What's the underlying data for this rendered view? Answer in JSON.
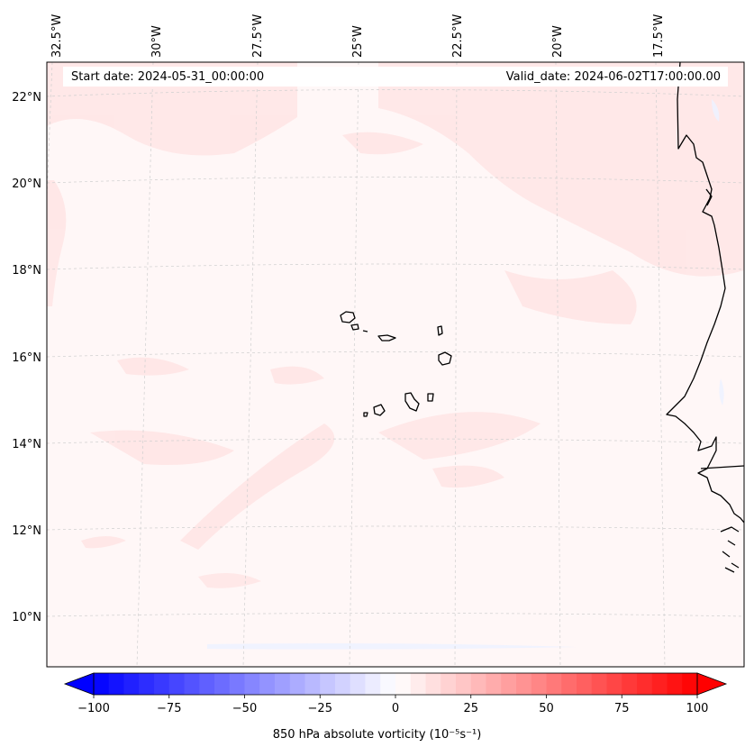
{
  "header": {
    "start_date": "Start date: 2024-05-31_00:00:00",
    "valid_date": "Valid_date: 2024-06-02T17:00:00.00"
  },
  "map": {
    "lon_ticks": [
      "32.5°W",
      "30°W",
      "27.5°W",
      "25°W",
      "22.5°W",
      "20°W",
      "17.5°W"
    ],
    "lat_ticks": [
      "22°N",
      "20°N",
      "18°N",
      "16°N",
      "14°N",
      "12°N",
      "10°N"
    ],
    "colors": {
      "coastline": "#000000",
      "gridline": "#cccccc",
      "field_base": "#fff5f5",
      "field_pos": "#ffe3e3"
    }
  },
  "colorbar": {
    "label_text": "850 hPa absolute vorticity",
    "label_unit": "(10⁻⁵s⁻¹)",
    "ticks": [
      "−100",
      "−75",
      "−50",
      "−25",
      "0",
      "25",
      "50",
      "75",
      "100"
    ],
    "vmin": -100,
    "vmax": 100,
    "min_color": "#0000ff",
    "mid_color": "#ffffff",
    "max_color": "#ff0000"
  }
}
